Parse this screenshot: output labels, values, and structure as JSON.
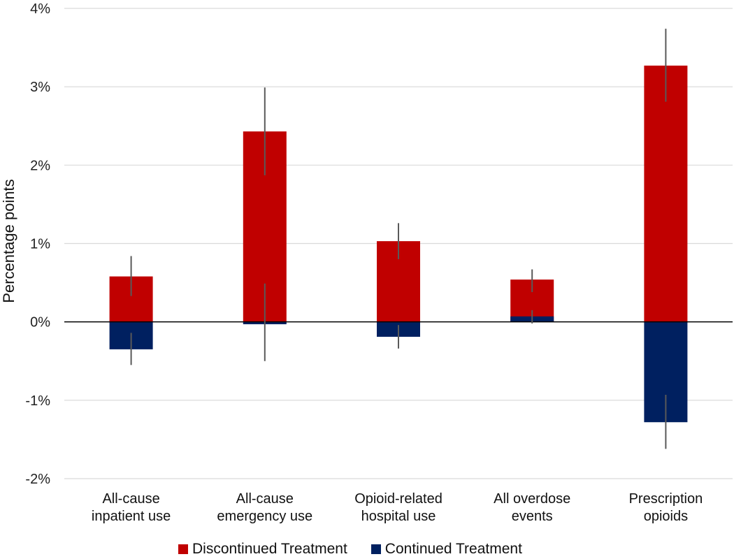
{
  "chart_data": {
    "type": "bar",
    "title": "",
    "xlabel": "",
    "ylabel": "Percentage points",
    "ylim": [
      -2,
      4
    ],
    "yticks": [
      -2,
      -1,
      0,
      1,
      2,
      3,
      4
    ],
    "ytick_labels": [
      "-2%",
      "-1%",
      "0%",
      "1%",
      "2%",
      "3%",
      "4%"
    ],
    "grid": true,
    "categories": [
      [
        "All-cause",
        "inpatient use"
      ],
      [
        "All-cause",
        "emergency use"
      ],
      [
        "Opioid-related",
        "hospital use"
      ],
      [
        "All overdose",
        "events"
      ],
      [
        "Prescription",
        "opioids"
      ]
    ],
    "series": [
      {
        "name": "Discontinued Treatment",
        "color": "#c00000",
        "values": [
          0.58,
          2.43,
          1.03,
          0.54,
          3.27
        ],
        "error_low": [
          0.33,
          1.87,
          0.8,
          0.38,
          2.81
        ],
        "error_high": [
          0.84,
          2.99,
          1.26,
          0.67,
          3.74
        ]
      },
      {
        "name": "Continued Treatment",
        "color": "#002060",
        "values": [
          -0.35,
          -0.03,
          -0.19,
          0.07,
          -1.28
        ],
        "error_low": [
          -0.55,
          -0.5,
          -0.34,
          -0.02,
          -1.62
        ],
        "error_high": [
          -0.14,
          0.49,
          -0.04,
          0.15,
          -0.93
        ]
      }
    ],
    "legend_position": "bottom"
  }
}
